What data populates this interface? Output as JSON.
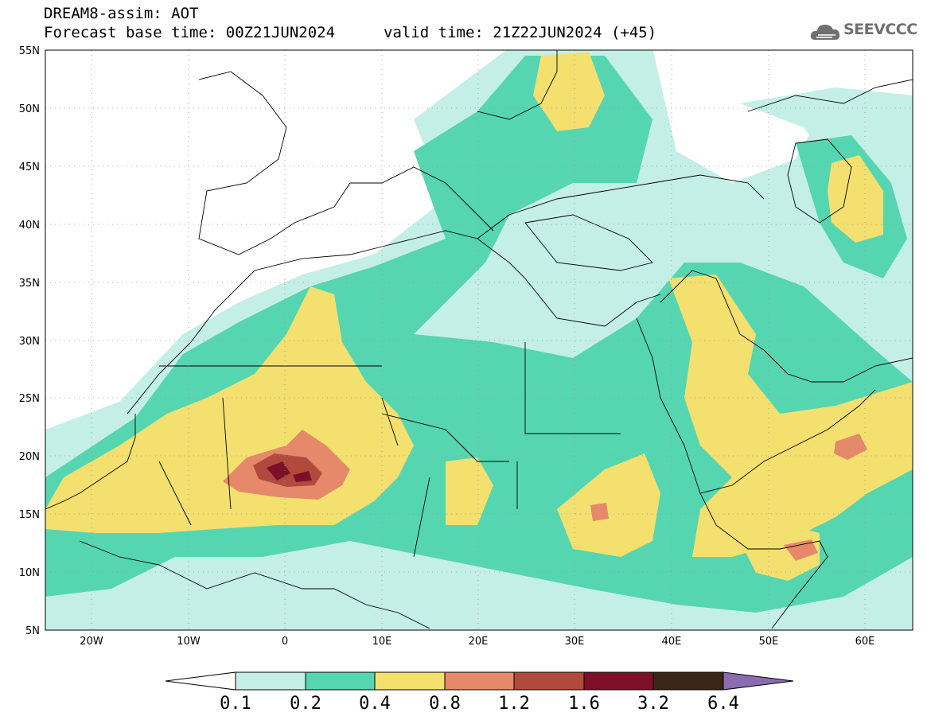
{
  "header": {
    "title": "DREAM8-assim: AOT",
    "base_time": "Forecast base time: 00Z21JUN2024",
    "valid_time": "valid time: 21Z22JUN2024 (+45)"
  },
  "logo": {
    "text": "SEEVCCC",
    "icon": "cloud-icon"
  },
  "map": {
    "lon_range": [
      -25,
      65
    ],
    "lat_range": [
      5,
      55
    ],
    "lon_ticks": [
      "20W",
      "10W",
      "0",
      "10E",
      "20E",
      "30E",
      "40E",
      "50E",
      "60E"
    ],
    "lat_ticks": [
      "55N",
      "50N",
      "45N",
      "40N",
      "35N",
      "30N",
      "25N",
      "20N",
      "15N",
      "10N",
      "5N"
    ],
    "grid": "dotted"
  },
  "colorbar": {
    "labels": [
      "0.1",
      "0.2",
      "0.4",
      "0.8",
      "1.2",
      "1.6",
      "3.2",
      "6.4"
    ],
    "colors": [
      "#ffffff",
      "#c4efe6",
      "#55d6b0",
      "#f3e06f",
      "#e5896a",
      "#b14a3c",
      "#7d1029",
      "#3a2518",
      "#8c6cb0"
    ]
  }
}
